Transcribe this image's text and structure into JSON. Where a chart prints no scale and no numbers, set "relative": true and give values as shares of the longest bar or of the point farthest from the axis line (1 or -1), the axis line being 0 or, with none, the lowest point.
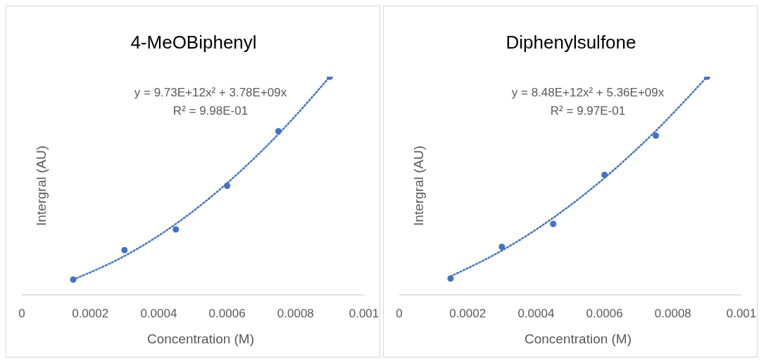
{
  "chart_data": [
    {
      "type": "scatter",
      "title": "4-MeOBiphenyl",
      "xlabel": "Concentration (M)",
      "ylabel": "Intergral (AU)",
      "relative": true,
      "xlim": [
        0,
        0.001
      ],
      "xticks": [
        0,
        0.0002,
        0.0004,
        0.0006,
        0.0008,
        0.001
      ],
      "grid": false,
      "legend": false,
      "annotations": [
        "y = 9.73E+12x² + 3.78E+09x",
        "R² = 9.98E-01"
      ],
      "series": [
        {
          "type": "scatter",
          "color": "#4472c4",
          "marker": "circle",
          "x": [
            0.00015,
            0.0003,
            0.00045,
            0.0006,
            0.00075,
            0.0009
          ],
          "values": [
            0.07,
            0.205,
            0.3,
            0.5,
            0.75,
            1
          ]
        },
        {
          "type": "line",
          "color": "#4472c4",
          "marker": "none",
          "line_style": "dotted",
          "x": [
            0.00015,
            0.0003,
            0.00045,
            0.0006,
            0.00075,
            0.0009
          ],
          "values": [
            0.07,
            0.178,
            0.325,
            0.512,
            0.737,
            1
          ]
        }
      ]
    },
    {
      "type": "scatter",
      "title": "Diphenylsulfone",
      "xlabel": "Concentration (M)",
      "ylabel": "Intergral (AU)",
      "relative": true,
      "xlim": [
        0,
        0.001
      ],
      "xticks": [
        0,
        0.0002,
        0.0004,
        0.0006,
        0.0008,
        0.001
      ],
      "grid": false,
      "legend": false,
      "annotations": [
        "y = 8.48E+12x² + 5.36E+09x",
        "R² = 9.97E-01"
      ],
      "series": [
        {
          "type": "scatter",
          "color": "#4472c4",
          "marker": "circle",
          "x": [
            0.00015,
            0.0003,
            0.00045,
            0.0006,
            0.00075,
            0.0009
          ],
          "values": [
            0.075,
            0.22,
            0.325,
            0.55,
            0.73,
            1
          ]
        },
        {
          "type": "line",
          "color": "#4472c4",
          "marker": "none",
          "line_style": "dotted",
          "x": [
            0.00015,
            0.0003,
            0.00045,
            0.0006,
            0.00075,
            0.0009
          ],
          "values": [
            0.085,
            0.203,
            0.353,
            0.536,
            0.752,
            1
          ]
        }
      ]
    }
  ]
}
